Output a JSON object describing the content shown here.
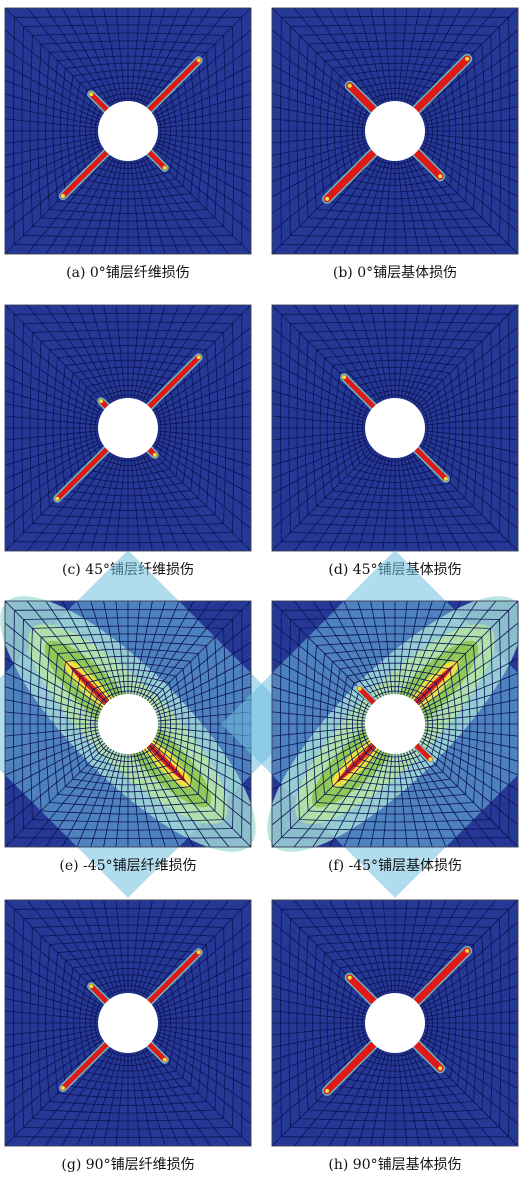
{
  "panels": [
    {
      "caption": "(a) 0°铺层纤维损伤"
    },
    {
      "caption": "(b) 0°铺层基体损伤"
    },
    {
      "caption": "(c) 45°铺层纤维损伤"
    },
    {
      "caption": "(d) 45°铺层基体损伤"
    },
    {
      "caption": "(e) -45°铺层纤维损伤"
    },
    {
      "caption": "(f) -45°铺层基体损伤"
    },
    {
      "caption": "(g) 90°铺层纤维损伤"
    },
    {
      "caption": "(h) 90°铺层基体损伤"
    }
  ]
}
